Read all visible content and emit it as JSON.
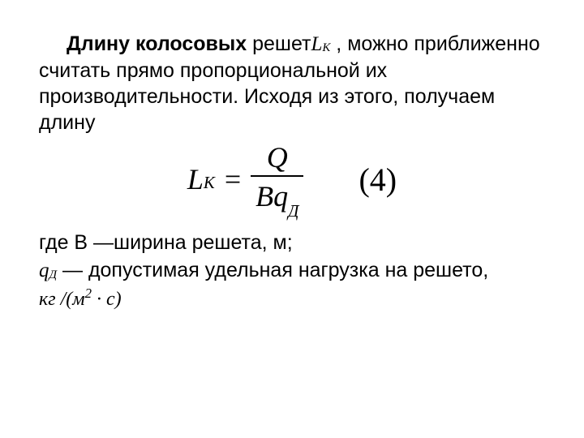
{
  "colors": {
    "text": "#000000",
    "background": "#ffffff"
  },
  "paragraph": {
    "lead_bold": "Длину колосовых",
    "lead_rest1": " решет",
    "sym_L": "L",
    "sym_Lsub": "К",
    "lead_rest2": "   , можно приближенно считать прямо пропорциональной их производительности. Исходя из этого, получаем длину"
  },
  "equation": {
    "lhs_var": "L",
    "lhs_sub": "K",
    "eq_sign": "=",
    "num": "Q",
    "den_left": "Bq",
    "den_sub": "Д",
    "number_open": "(",
    "number_val": "4",
    "number_close": ")",
    "fontsize_main": 36,
    "fontsize_number": 40
  },
  "where": {
    "line1_pre": "где В —ширина решета, м;",
    "sym_q": "q",
    "sym_q_sub": "Д",
    "line2_rest": "— допустимая удельная нагрузка на решето,",
    "unit_prefix": "кг /(м",
    "unit_sup": "2",
    "unit_dot": " · ",
    "unit_suffix": "с)"
  }
}
